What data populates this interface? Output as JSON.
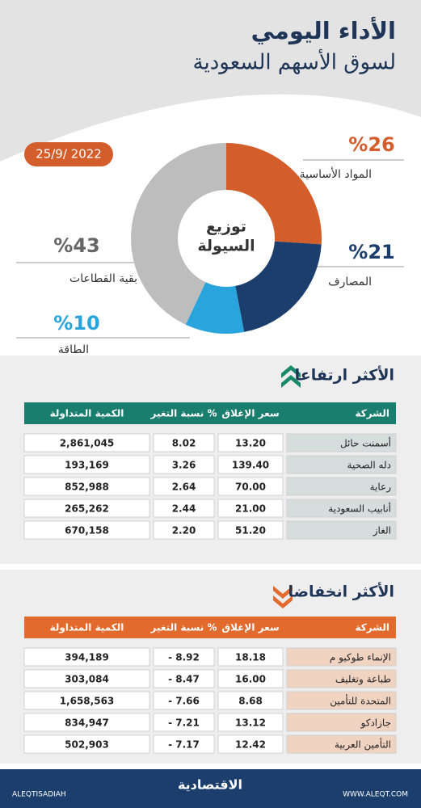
{
  "header": {
    "title": "الأداء اليومي",
    "subtitle": "لسوق الأسهم السعودية",
    "date": "25/9/ 2022"
  },
  "chart_data": {
    "type": "pie",
    "title": [
      "توزيع",
      "السيولة"
    ],
    "categories": [
      "المواد الأساسية",
      "المصارف",
      "الطاقة",
      "بقية القطاعات"
    ],
    "values": [
      26,
      21,
      10,
      43
    ],
    "value_labels": [
      "%26",
      "%21",
      "%10",
      "%43"
    ],
    "colors": [
      "#d45e2b",
      "#1c3e6c",
      "#2aa4dd",
      "#bdbdbd"
    ]
  },
  "gainers": {
    "title": "الأكثر ارتفاعا",
    "columns": [
      "الشركة",
      "سعر الإغلاق",
      "نسبة التغير %",
      "الكمية المتداولة"
    ],
    "rows": [
      [
        "أسمنت حائل",
        "13.20",
        "8.02",
        "2,861,045"
      ],
      [
        "دله الصحية",
        "139.40",
        "3.26",
        "193,169"
      ],
      [
        "رعاية",
        "70.00",
        "2.64",
        "852,988"
      ],
      [
        "أنابيب السعودية",
        "21.00",
        "2.44",
        "265,262"
      ],
      [
        "الغاز",
        "51.20",
        "2.20",
        "670,158"
      ]
    ]
  },
  "losers": {
    "title": "الأكثر انخفاضا",
    "columns": [
      "الشركة",
      "سعر الإغلاق",
      "نسبة التغير %",
      "الكمية المتداولة"
    ],
    "rows": [
      [
        "الإنماء طوكيو م",
        "18.18",
        "- 8.92",
        "394,189"
      ],
      [
        "طباعة وتغليف",
        "16.00",
        "- 8.47",
        "303,084"
      ],
      [
        "المتحدة للتأمين",
        "8.68",
        "- 7.66",
        "1,658,563"
      ],
      [
        "جازادكو",
        "13.12",
        "- 7.21",
        "834,947"
      ],
      [
        "التأمين العربية",
        "12.42",
        "- 7.17",
        "502,903"
      ]
    ]
  },
  "footer": {
    "social": "ALEQTISADIAH",
    "brand": "الاقتصادية",
    "site": "WWW.ALEQT.COM"
  }
}
